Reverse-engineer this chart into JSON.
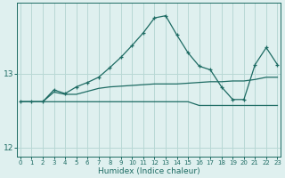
{
  "xlabel": "Humidex (Indice chaleur)",
  "x_values": [
    0,
    1,
    2,
    3,
    4,
    5,
    6,
    7,
    8,
    9,
    10,
    11,
    12,
    13,
    14,
    15,
    16,
    17,
    18,
    19,
    20,
    21,
    22,
    23
  ],
  "line_flat": [
    12.62,
    12.62,
    12.62,
    12.62,
    12.62,
    12.62,
    12.62,
    12.62,
    12.62,
    12.62,
    12.62,
    12.62,
    12.62,
    12.62,
    12.62,
    12.62,
    12.57,
    12.57,
    12.57,
    12.57,
    12.57,
    12.57,
    12.57,
    12.57
  ],
  "line_mid": [
    12.62,
    12.62,
    12.62,
    12.75,
    12.72,
    12.72,
    12.76,
    12.8,
    12.82,
    12.83,
    12.84,
    12.85,
    12.86,
    12.86,
    12.86,
    12.87,
    12.88,
    12.89,
    12.89,
    12.9,
    12.9,
    12.92,
    12.95,
    12.95
  ],
  "line_peak": [
    12.62,
    12.62,
    12.62,
    12.78,
    12.73,
    12.82,
    12.88,
    12.95,
    13.08,
    13.22,
    13.38,
    13.55,
    13.75,
    13.78,
    13.52,
    13.28,
    13.1,
    13.05,
    12.82,
    12.65,
    12.65,
    13.12,
    13.35,
    13.12
  ],
  "line_color": "#1d6b63",
  "bg_color": "#dff0ef",
  "grid_color": "#b8d8d5",
  "tick_color": "#1d6b63",
  "ylim": [
    11.88,
    13.95
  ],
  "yticks": [
    12,
    13
  ],
  "xlim": [
    -0.3,
    23.3
  ]
}
